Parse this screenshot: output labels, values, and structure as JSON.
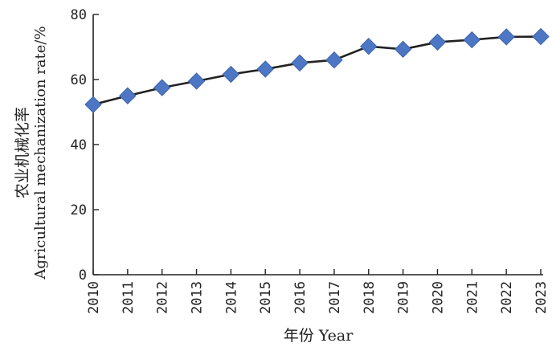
{
  "chart_data": {
    "type": "line",
    "x": [
      "2010",
      "2011",
      "2012",
      "2013",
      "2014",
      "2015",
      "2016",
      "2017",
      "2018",
      "2019",
      "2020",
      "2021",
      "2022",
      "2023"
    ],
    "series": [
      {
        "values": [
          52.3,
          55.0,
          57.5,
          59.5,
          61.6,
          63.2,
          65.1,
          66.0,
          70.2,
          69.3,
          71.5,
          72.2,
          73.1,
          73.2
        ]
      }
    ],
    "ylim": [
      0,
      80
    ],
    "yticks": [
      "0",
      "20",
      "40",
      "60",
      "80"
    ],
    "xlabel": "年份 Year",
    "ylabel_cn": "农业机械化率",
    "ylabel_en": "Agricultural mechanization rate/%",
    "grid": false,
    "marker": "diamond",
    "marker_color": "#4d77c4",
    "line_color": "#222222"
  }
}
